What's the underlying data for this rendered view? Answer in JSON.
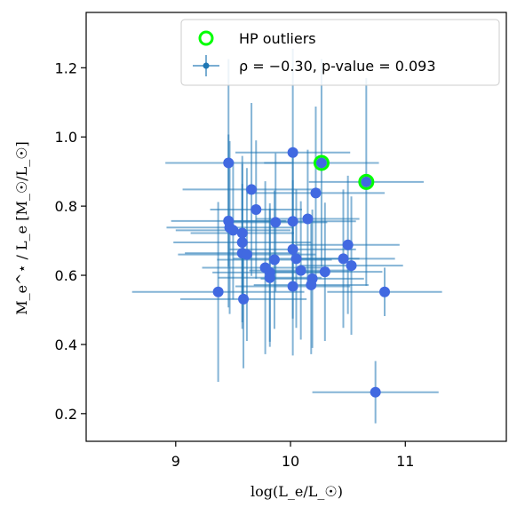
{
  "chart_data": {
    "type": "scatter",
    "xlabel": "log(L_e/L_☉)",
    "ylabel": "M_e^⋆ / L_e  [M_☉/L_☉]",
    "xlim": [
      8.22,
      11.88
    ],
    "ylim": [
      0.12,
      1.36
    ],
    "xticks": [
      9,
      10,
      11
    ],
    "xtick_labels": [
      "9",
      "10",
      "11"
    ],
    "yticks": [
      0.2,
      0.4,
      0.6,
      0.8,
      1.0,
      1.2
    ],
    "ytick_labels": [
      "0.2",
      "0.4",
      "0.6",
      "0.8",
      "1.0",
      "1.2"
    ],
    "grid": false,
    "legend_position": "top-right",
    "legend": [
      {
        "marker": "open-circle",
        "color": "#00ff00",
        "label": "HP outliers"
      },
      {
        "marker": "errorbar-point",
        "color": "#1f77b4",
        "label": "ρ = −0.30, p-value = 0.093"
      }
    ],
    "points_color": "#4169e1",
    "errorbar_color": "#1f77b4",
    "series": [
      {
        "points": [
          {
            "x": 9.46,
            "y": 0.925,
            "xerr": 0.55,
            "yerr": 0.3
          },
          {
            "x": 10.02,
            "y": 0.955,
            "xerr": 0.5,
            "yerr": 0.3
          },
          {
            "x": 10.27,
            "y": 0.925,
            "xerr": 0.5,
            "yerr": 0.3
          },
          {
            "x": 10.66,
            "y": 0.87,
            "xerr": 0.5,
            "yerr": 0.3
          },
          {
            "x": 9.66,
            "y": 0.848,
            "xerr": 0.6,
            "yerr": 0.25
          },
          {
            "x": 10.22,
            "y": 0.838,
            "xerr": 0.6,
            "yerr": 0.25
          },
          {
            "x": 9.7,
            "y": 0.79,
            "xerr": 0.4,
            "yerr": 0.2
          },
          {
            "x": 9.46,
            "y": 0.757,
            "xerr": 0.5,
            "yerr": 0.25
          },
          {
            "x": 10.02,
            "y": 0.756,
            "xerr": 0.55,
            "yerr": 0.2
          },
          {
            "x": 9.87,
            "y": 0.753,
            "xerr": 0.45,
            "yerr": 0.2
          },
          {
            "x": 10.15,
            "y": 0.763,
            "xerr": 0.45,
            "yerr": 0.2
          },
          {
            "x": 9.47,
            "y": 0.738,
            "xerr": 0.55,
            "yerr": 0.25
          },
          {
            "x": 9.5,
            "y": 0.73,
            "xerr": 0.5,
            "yerr": 0.2
          },
          {
            "x": 9.58,
            "y": 0.722,
            "xerr": 0.45,
            "yerr": 0.2
          },
          {
            "x": 9.58,
            "y": 0.695,
            "xerr": 0.6,
            "yerr": 0.25
          },
          {
            "x": 10.02,
            "y": 0.675,
            "xerr": 0.55,
            "yerr": 0.2
          },
          {
            "x": 10.5,
            "y": 0.688,
            "xerr": 0.45,
            "yerr": 0.2
          },
          {
            "x": 9.58,
            "y": 0.664,
            "xerr": 0.5,
            "yerr": 0.2
          },
          {
            "x": 9.62,
            "y": 0.66,
            "xerr": 0.6,
            "yerr": 0.25
          },
          {
            "x": 10.05,
            "y": 0.648,
            "xerr": 0.55,
            "yerr": 0.2
          },
          {
            "x": 9.86,
            "y": 0.645,
            "xerr": 0.5,
            "yerr": 0.2
          },
          {
            "x": 10.46,
            "y": 0.648,
            "xerr": 0.45,
            "yerr": 0.2
          },
          {
            "x": 9.78,
            "y": 0.622,
            "xerr": 0.55,
            "yerr": 0.25
          },
          {
            "x": 10.53,
            "y": 0.628,
            "xerr": 0.45,
            "yerr": 0.2
          },
          {
            "x": 9.82,
            "y": 0.608,
            "xerr": 0.5,
            "yerr": 0.2
          },
          {
            "x": 10.09,
            "y": 0.614,
            "xerr": 0.45,
            "yerr": 0.2
          },
          {
            "x": 10.3,
            "y": 0.61,
            "xerr": 0.5,
            "yerr": 0.2
          },
          {
            "x": 9.82,
            "y": 0.593,
            "xerr": 0.45,
            "yerr": 0.2
          },
          {
            "x": 10.19,
            "y": 0.59,
            "xerr": 0.45,
            "yerr": 0.2
          },
          {
            "x": 10.18,
            "y": 0.572,
            "xerr": 0.5,
            "yerr": 0.2
          },
          {
            "x": 10.02,
            "y": 0.568,
            "xerr": 0.5,
            "yerr": 0.2
          },
          {
            "x": 9.37,
            "y": 0.552,
            "xerr": 0.75,
            "yerr": 0.26
          },
          {
            "x": 10.82,
            "y": 0.552,
            "xerr": 0.5,
            "yerr": 0.07
          },
          {
            "x": 9.59,
            "y": 0.531,
            "xerr": 0.55,
            "yerr": 0.2
          },
          {
            "x": 10.74,
            "y": 0.262,
            "xerr": 0.55,
            "yerr": 0.09
          }
        ]
      }
    ],
    "outliers": [
      {
        "x": 10.27,
        "y": 0.925
      },
      {
        "x": 10.66,
        "y": 0.87
      }
    ]
  }
}
